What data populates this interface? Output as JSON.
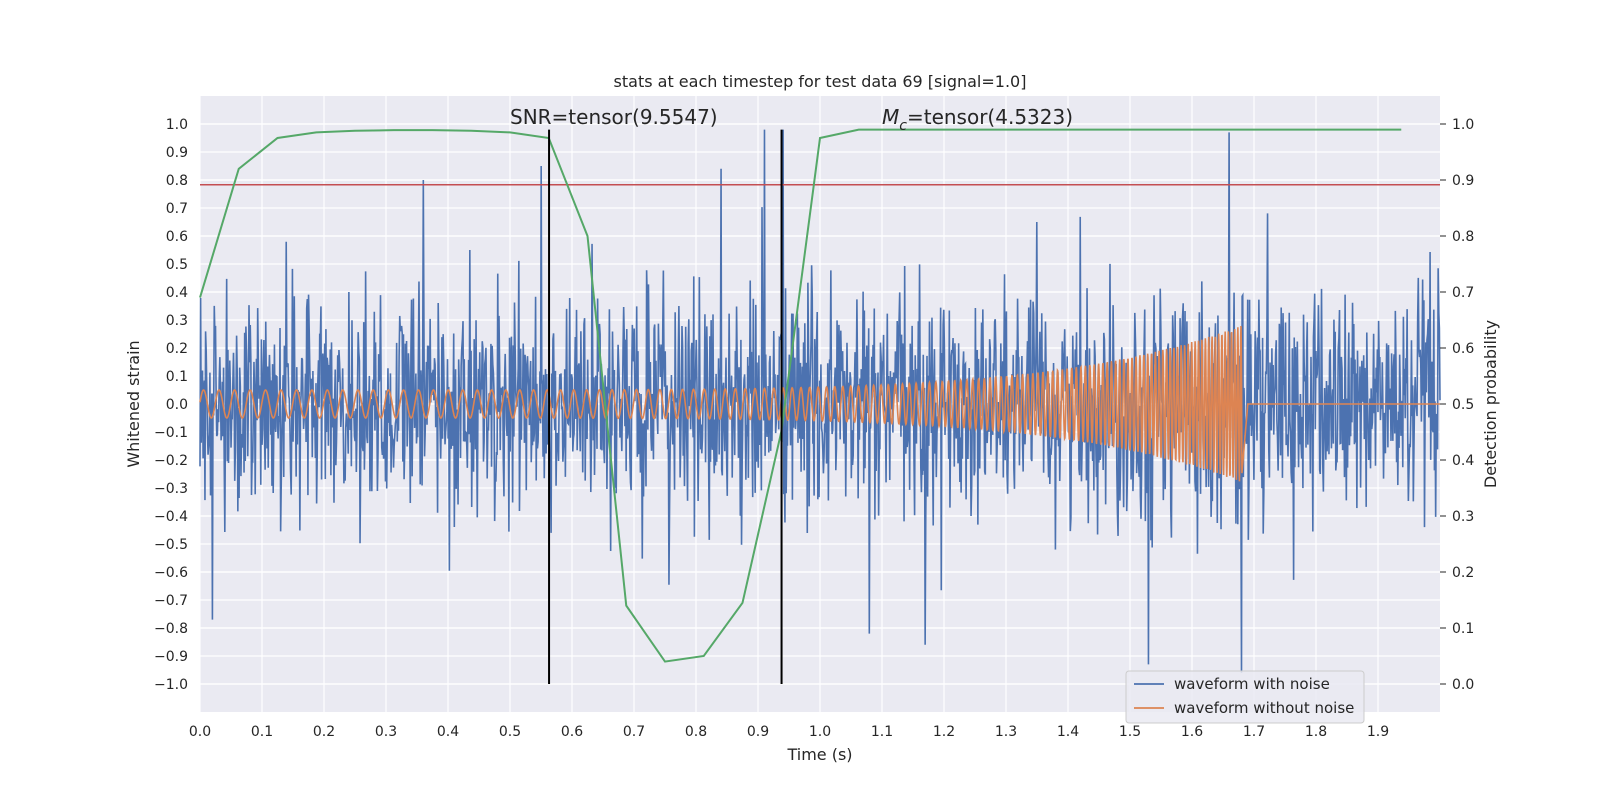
{
  "chart_data": {
    "type": "line",
    "title": "stats at each timestep for test data 69 [signal=1.0]",
    "xlabel": "Time (s)",
    "ylabel": "Whitened strain",
    "y2label": "Detection probability",
    "xlim": [
      0.0,
      2.0
    ],
    "ylim": [
      -1.1,
      1.1
    ],
    "y2lim": [
      -0.05,
      1.05
    ],
    "x_ticks": [
      "0.0",
      "0.1",
      "0.2",
      "0.3",
      "0.4",
      "0.5",
      "0.6",
      "0.7",
      "0.8",
      "0.9",
      "1.0",
      "1.1",
      "1.2",
      "1.3",
      "1.4",
      "1.5",
      "1.6",
      "1.7",
      "1.8",
      "1.9"
    ],
    "y_ticks": [
      "1.0",
      "0.9",
      "0.8",
      "0.7",
      "0.6",
      "0.5",
      "0.4",
      "0.3",
      "0.2",
      "0.1",
      "0.0",
      "−0.1",
      "−0.2",
      "−0.3",
      "−0.4",
      "−0.5",
      "−0.6",
      "−0.7",
      "−0.8",
      "−0.9",
      "−1.0"
    ],
    "y2_ticks": [
      "1.0",
      "0.9",
      "0.8",
      "0.7",
      "0.6",
      "0.5",
      "0.4",
      "0.3",
      "0.2",
      "0.1",
      "0.0"
    ],
    "grid": true,
    "legend_position": "bottom-right",
    "annotations": {
      "snr": "SNR=tensor(9.5547)",
      "mc_symbol": "M",
      "mc_subscript": "c",
      "mc_value": "=tensor(4.5323)"
    },
    "legend": [
      {
        "label": "waveform with noise",
        "color": "#4c72b0"
      },
      {
        "label": "waveform without noise",
        "color": "#dd8452"
      }
    ],
    "noisy_waveform": {
      "color": "#4c72b0",
      "x_range": [
        0.0,
        2.0
      ],
      "sample_count": 2000,
      "approx_std": 0.2,
      "notable_peaks": [
        {
          "x": 0.36,
          "y": 0.8
        },
        {
          "x": 0.55,
          "y": 0.85
        },
        {
          "x": 0.84,
          "y": 0.84
        },
        {
          "x": 0.91,
          "y": 0.98
        },
        {
          "x": 0.94,
          "y": 0.98
        },
        {
          "x": 1.66,
          "y": 0.97
        },
        {
          "x": 1.53,
          "y": -0.93
        },
        {
          "x": 1.68,
          "y": -0.96
        },
        {
          "x": 0.02,
          "y": -0.77
        },
        {
          "x": 1.08,
          "y": -0.82
        },
        {
          "x": 1.17,
          "y": -0.86
        }
      ]
    },
    "clean_waveform": {
      "color": "#dd8452",
      "description_type": "chirp",
      "start_time": 0.0,
      "merger_time": 1.68,
      "start_frequency_hz": 40,
      "end_frequency_hz": 200,
      "start_amplitude": 0.05,
      "peak_amplitude": 0.28,
      "ringdown_amplitude": -0.26,
      "after_merger_value": 0.0
    },
    "detection_probability": {
      "color": "#55a868",
      "axis": "right",
      "x": [
        0.0,
        0.0625,
        0.125,
        0.1875,
        0.25,
        0.3125,
        0.375,
        0.4375,
        0.5,
        0.5625,
        0.625,
        0.6875,
        0.75,
        0.8125,
        0.875,
        0.9375,
        1.0,
        1.0625,
        1.125,
        1.1875,
        1.25,
        1.3125,
        1.375,
        1.4375,
        1.5,
        1.5625,
        1.625,
        1.6875,
        1.75,
        1.8125,
        1.875,
        1.9375
      ],
      "values": [
        0.69,
        0.92,
        0.975,
        0.985,
        0.988,
        0.989,
        0.989,
        0.988,
        0.985,
        0.975,
        0.8,
        0.14,
        0.04,
        0.05,
        0.145,
        0.45,
        0.975,
        0.99,
        0.99,
        0.99,
        0.99,
        0.99,
        0.99,
        0.99,
        0.99,
        0.99,
        0.99,
        0.99,
        0.99,
        0.99,
        0.99,
        0.99
      ]
    },
    "threshold_line": {
      "color": "#c44e52",
      "y": 0.783
    },
    "vertical_markers": [
      {
        "x": 0.563,
        "y_top": 0.98,
        "y_bottom": -1.0,
        "color": "#000000"
      },
      {
        "x": 0.938,
        "y_top": 0.98,
        "y_bottom": -1.0,
        "color": "#000000"
      }
    ]
  }
}
